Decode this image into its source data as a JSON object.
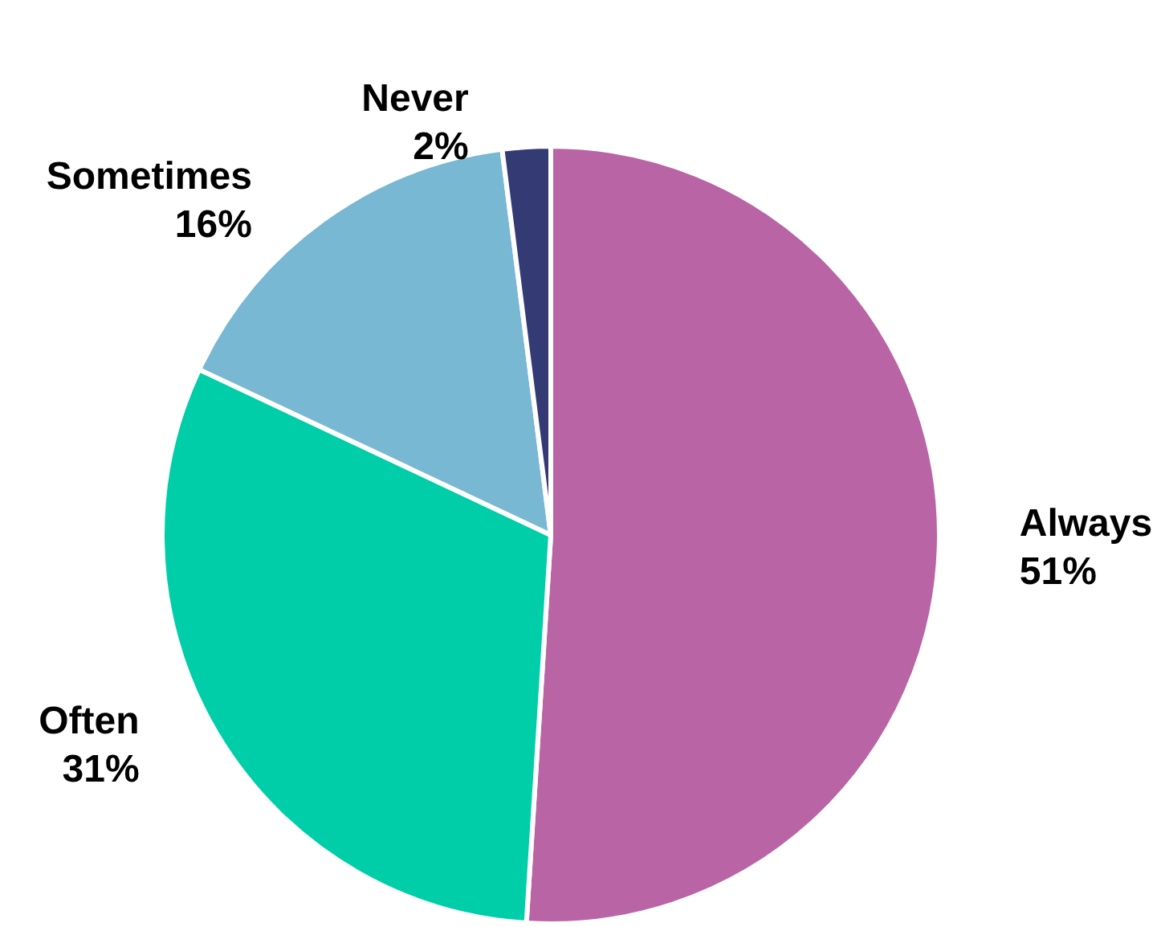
{
  "chart_data": {
    "type": "pie",
    "categories": [
      "Always",
      "Often",
      "Sometimes",
      "Never"
    ],
    "values": [
      51,
      31,
      16,
      2
    ],
    "colors": [
      "#b965a5",
      "#00cea8",
      "#78b8d2",
      "#343a73"
    ],
    "value_labels": [
      "51%",
      "31%",
      "16%",
      "2%"
    ],
    "legend": false
  }
}
